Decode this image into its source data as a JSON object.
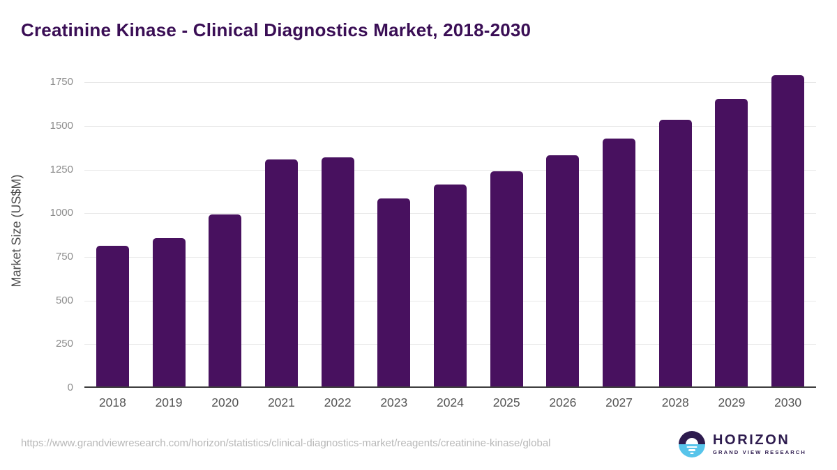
{
  "chart_data": {
    "type": "bar",
    "title": "Creatinine Kinase - Clinical Diagnostics Market, 2018-2030",
    "xlabel": "",
    "ylabel": "Market Size (US$M)",
    "categories": [
      "2018",
      "2019",
      "2020",
      "2021",
      "2022",
      "2023",
      "2024",
      "2025",
      "2026",
      "2027",
      "2028",
      "2029",
      "2030"
    ],
    "values": [
      807,
      849,
      984,
      1302,
      1311,
      1077,
      1155,
      1233,
      1324,
      1422,
      1528,
      1648,
      1783
    ],
    "yticks": [
      0,
      250,
      500,
      750,
      1000,
      1250,
      1500,
      1750
    ],
    "ylim": [
      0,
      1875
    ],
    "grid": true,
    "legend_position": "none",
    "bar_color": "#48115f"
  },
  "colors": {
    "title_text": "#3a0e55",
    "axis_line": "#3d3d3d",
    "gridline": "#e8e8e8",
    "y_tick_text": "#8c8c8c",
    "x_tick_text": "#545454",
    "url_text": "#b8b8b8",
    "logo_purple": "#2d1b4e",
    "logo_blue": "#57c4ea"
  },
  "footer": {
    "source_url": "https://www.grandviewresearch.com/horizon/statistics/clinical-diagnostics-market/reagents/creatinine-kinase/global",
    "logo": {
      "brand": "HORIZON",
      "subbrand": "GRAND VIEW RESEARCH"
    }
  }
}
